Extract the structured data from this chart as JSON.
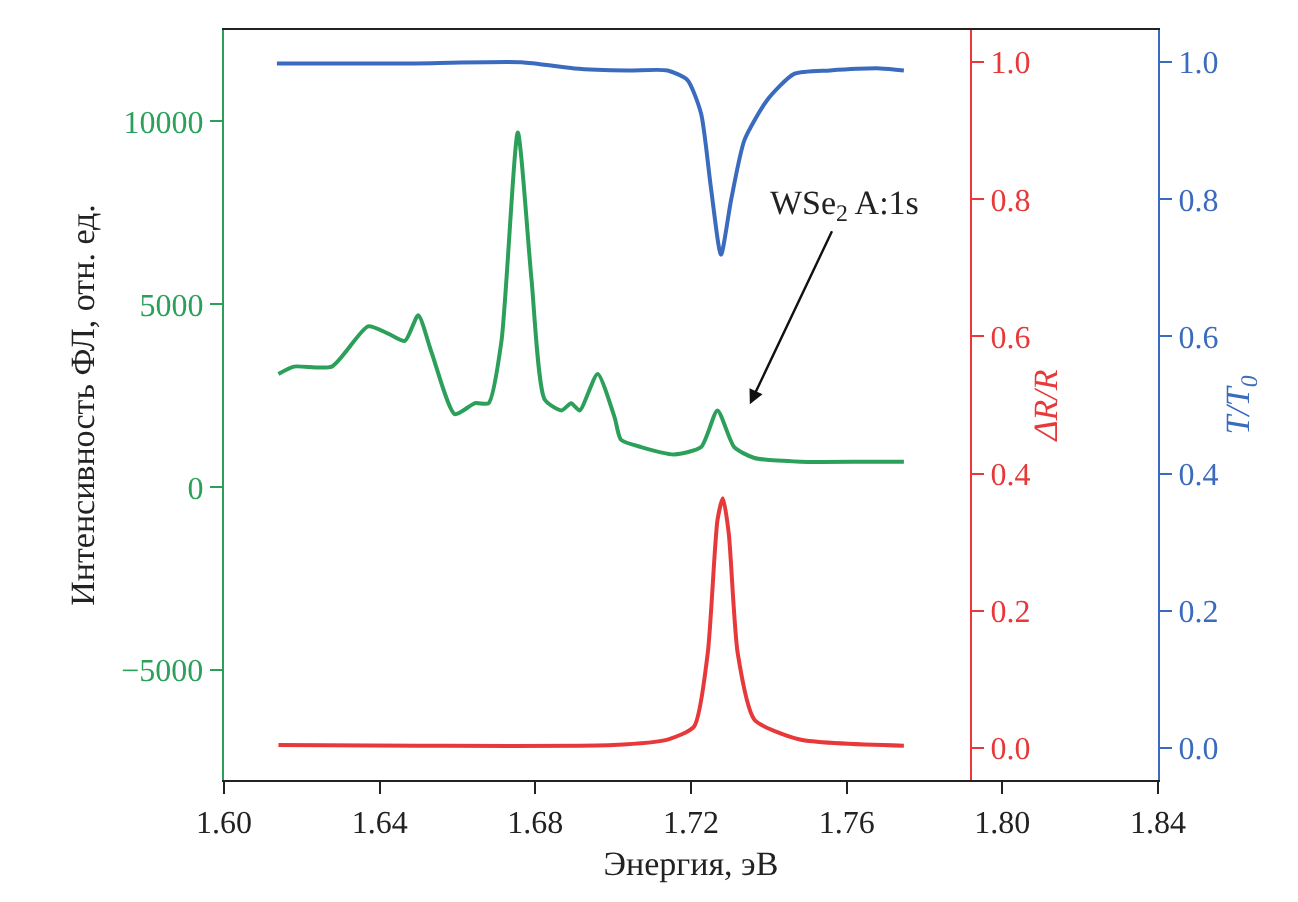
{
  "chart_data": {
    "type": "line",
    "xlabel": "Энергия, эВ",
    "ylabel": "Интенсивность ФЛ, отн. ед.",
    "y2label": "ΔR/R",
    "y3label": "T/T$_{0}$",
    "xlim": [
      1.6,
      1.84
    ],
    "xticks": [
      {
        "value": 1.6,
        "label": "1.60"
      },
      1.64,
      1.68,
      1.72,
      1.76,
      {
        "value": 1.8,
        "label": "1.80"
      },
      1.84
    ],
    "ylim": [
      -8000,
      12500
    ],
    "yticks": [
      {
        "value": -5000,
        "label": "−5000"
      },
      0,
      5000,
      10000
    ],
    "y2lim": [
      -0.047,
      1.047
    ],
    "y2ticks": [
      {
        "value": 0,
        "label": "0.0"
      },
      0.2,
      0.4,
      0.6,
      0.8,
      {
        "value": 1,
        "label": "1.0"
      }
    ],
    "y3lim": [
      -0.047,
      1.047
    ],
    "y3ticks": [
      {
        "value": 0,
        "label": "0.0"
      },
      0.2,
      0.4,
      0.6,
      0.8,
      {
        "value": 1,
        "label": "1.0"
      }
    ],
    "marker": "none",
    "line_style": "solid",
    "annotations": [
      "WSe$_{2}$ A:1s"
    ],
    "series": [
      {
        "color": "#2ca05a",
        "x": [
          1.614,
          1.618,
          1.6277,
          1.637,
          1.6422,
          1.6465,
          1.6499,
          1.6533,
          1.6593,
          1.6645,
          1.668,
          1.6713,
          1.6755,
          1.679,
          1.6824,
          1.6867,
          1.6892,
          1.6914,
          1.696,
          1.7004,
          1.702,
          1.7072,
          1.7157,
          1.7226,
          1.7268,
          1.7311,
          1.7363,
          1.7482,
          1.7653,
          1.7747
        ],
        "values": [
          3100,
          3300,
          3300,
          4400,
          4200,
          4000,
          4700,
          3700,
          2000,
          2300,
          2300,
          4000,
          9700,
          5700,
          2400,
          2100,
          2300,
          2100,
          3100,
          1900,
          1300,
          1100,
          900,
          1100,
          2100,
          1100,
          800,
          700,
          700,
          700
        ]
      },
      {
        "color": "#e8393a",
        "axis": "y2",
        "x": [
          1.614,
          1.65,
          1.7,
          1.714,
          1.7208,
          1.7243,
          1.7268,
          1.7282,
          1.7297,
          1.732,
          1.7363,
          1.748,
          1.7747
        ],
        "values": [
          0.004,
          0.003,
          0.004,
          0.012,
          0.031,
          0.138,
          0.332,
          0.364,
          0.313,
          0.138,
          0.041,
          0.012,
          0.003
        ]
      },
      {
        "color": "#3a6bbf",
        "axis": "y3",
        "x": [
          1.6136,
          1.6456,
          1.6764,
          1.69,
          1.7037,
          1.714,
          1.7191,
          1.7226,
          1.7251,
          1.7277,
          1.7303,
          1.7337,
          1.7396,
          1.7465,
          1.7557,
          1.7687,
          1.7747
        ],
        "values": [
          0.998,
          0.998,
          1.0,
          0.991,
          0.988,
          0.988,
          0.974,
          0.925,
          0.818,
          0.719,
          0.799,
          0.886,
          0.945,
          0.983,
          0.988,
          0.991,
          0.988
        ]
      }
    ]
  }
}
